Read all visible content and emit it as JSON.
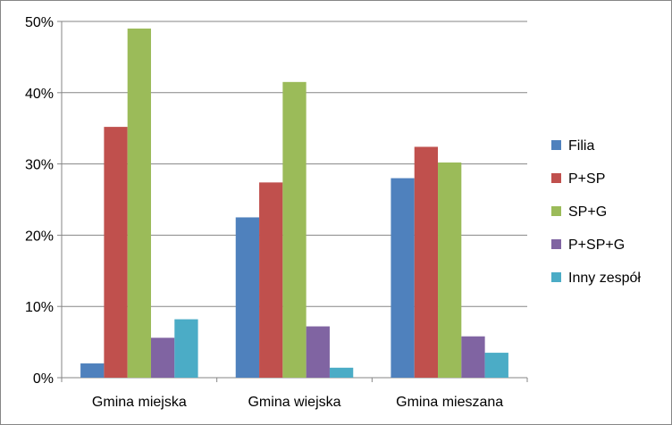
{
  "chart_data": {
    "type": "bar",
    "title": "",
    "xlabel": "",
    "ylabel": "",
    "categories": [
      "Gmina miejska",
      "Gmina wiejska",
      "Gmina mieszana"
    ],
    "series": [
      {
        "name": "Filia",
        "color": "#4F81BD",
        "values": [
          2.0,
          22.5,
          28.0
        ]
      },
      {
        "name": "P+SP",
        "color": "#C0504D",
        "values": [
          35.2,
          27.4,
          32.4
        ]
      },
      {
        "name": "SP+G",
        "color": "#9BBB59",
        "values": [
          49.0,
          41.5,
          30.2
        ]
      },
      {
        "name": "P+SP+G",
        "color": "#8064A2",
        "values": [
          5.6,
          7.2,
          5.8
        ]
      },
      {
        "name": "Inny zespół",
        "color": "#4BACC6",
        "values": [
          8.2,
          1.4,
          3.5
        ]
      }
    ],
    "ylim": [
      0,
      50
    ],
    "yticks": [
      0,
      10,
      20,
      30,
      40,
      50
    ],
    "ytick_labels": [
      "0%",
      "10%",
      "20%",
      "30%",
      "40%",
      "50%"
    ],
    "grid": true,
    "legend": "right"
  }
}
